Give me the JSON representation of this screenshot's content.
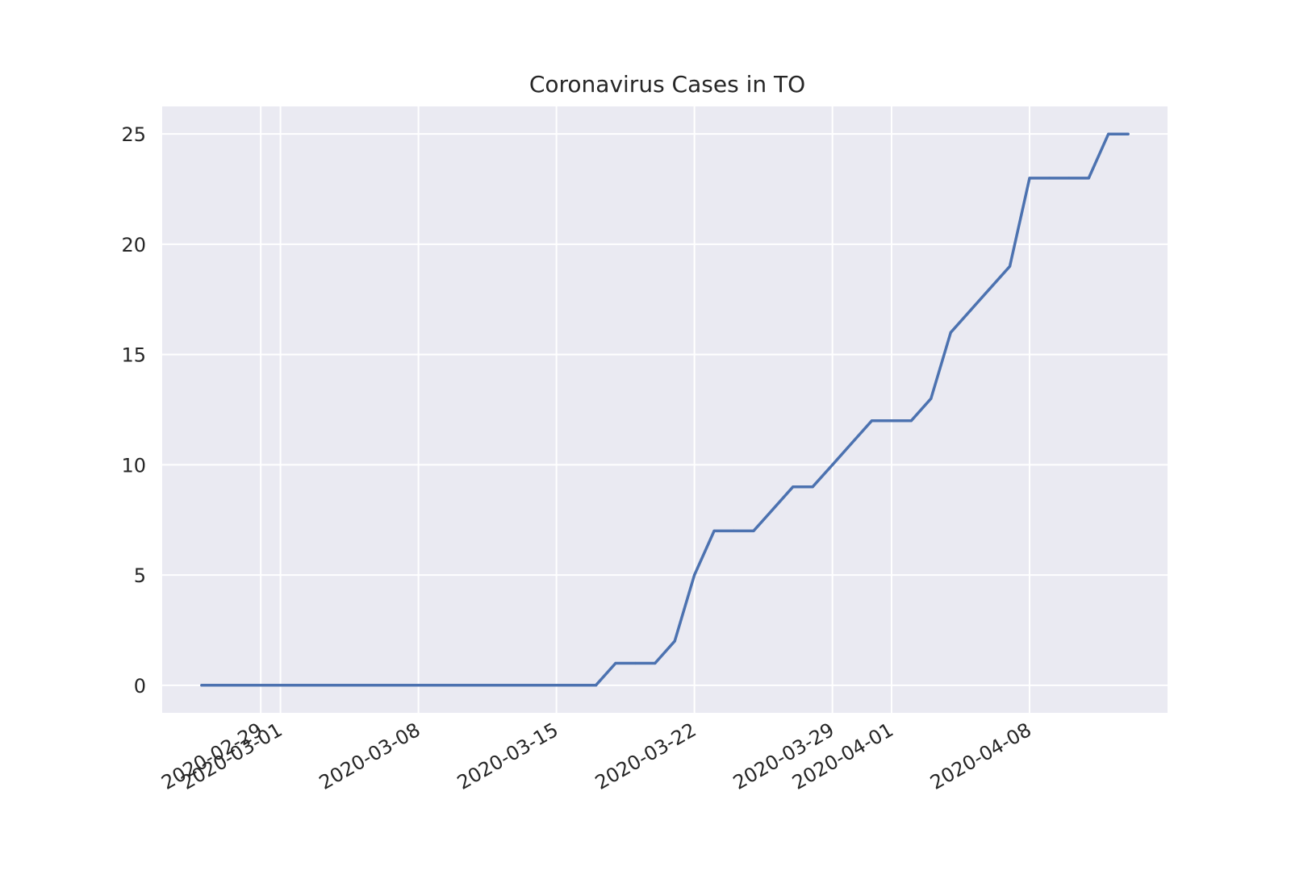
{
  "chart_data": {
    "type": "line",
    "title": "Coronavirus Cases in TO",
    "xlabel": "",
    "ylabel": "",
    "x_type": "date",
    "xlim": [
      "2020-02-24",
      "2020-04-15"
    ],
    "ylim": [
      -1.25,
      26.25
    ],
    "x_ticks": [
      "2020-02-29",
      "2020-03-01",
      "2020-03-08",
      "2020-03-15",
      "2020-03-22",
      "2020-03-29",
      "2020-04-01",
      "2020-04-08"
    ],
    "y_ticks": [
      0,
      5,
      10,
      15,
      20,
      25
    ],
    "grid": true,
    "legend": "none",
    "colors": {
      "line": "#4c72b0",
      "plot_background": "#eaeaf2",
      "grid": "#ffffff",
      "text": "#262626"
    },
    "series": [
      {
        "x": [
          "2020-02-26",
          "2020-02-27",
          "2020-02-28",
          "2020-02-29",
          "2020-03-01",
          "2020-03-02",
          "2020-03-03",
          "2020-03-04",
          "2020-03-05",
          "2020-03-06",
          "2020-03-07",
          "2020-03-08",
          "2020-03-09",
          "2020-03-10",
          "2020-03-11",
          "2020-03-12",
          "2020-03-13",
          "2020-03-14",
          "2020-03-15",
          "2020-03-16",
          "2020-03-17",
          "2020-03-18",
          "2020-03-19",
          "2020-03-20",
          "2020-03-21",
          "2020-03-22",
          "2020-03-23",
          "2020-03-24",
          "2020-03-25",
          "2020-03-26",
          "2020-03-27",
          "2020-03-28",
          "2020-03-29",
          "2020-03-30",
          "2020-03-31",
          "2020-04-01",
          "2020-04-02",
          "2020-04-03",
          "2020-04-04",
          "2020-04-05",
          "2020-04-06",
          "2020-04-07",
          "2020-04-08",
          "2020-04-09",
          "2020-04-10",
          "2020-04-11",
          "2020-04-12",
          "2020-04-13"
        ],
        "values": [
          0,
          0,
          0,
          0,
          0,
          0,
          0,
          0,
          0,
          0,
          0,
          0,
          0,
          0,
          0,
          0,
          0,
          0,
          0,
          0,
          0,
          1,
          1,
          1,
          2,
          5,
          7,
          7,
          7,
          8,
          9,
          9,
          10,
          11,
          12,
          12,
          12,
          13,
          16,
          17,
          18,
          19,
          23,
          23,
          23,
          23,
          25,
          25
        ]
      }
    ]
  }
}
